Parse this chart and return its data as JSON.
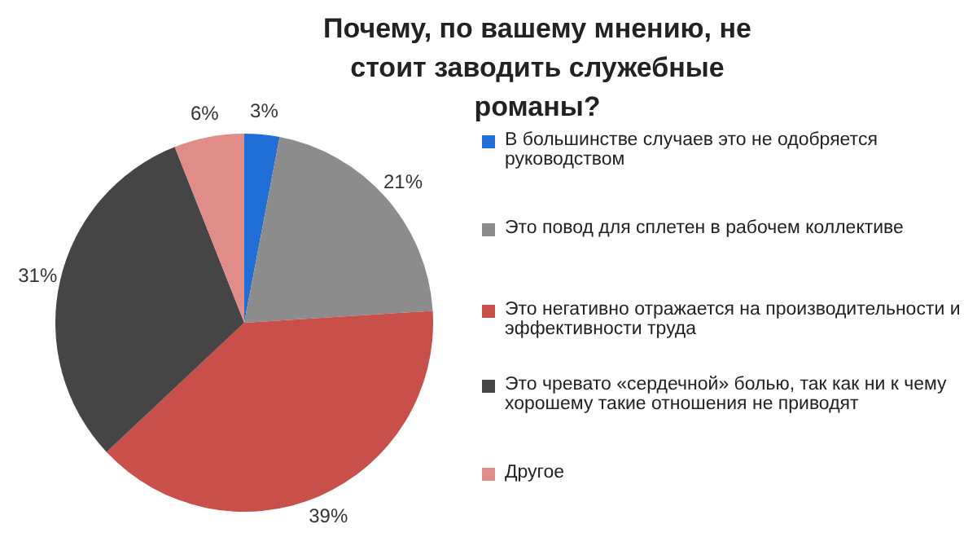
{
  "chart_data": {
    "type": "pie",
    "title": "Почему, по вашему мнению, не стоит заводить служебные романы?",
    "categories": [
      "В большинстве случаев это не одобряется руководством",
      "Это повод для сплетен в рабочем коллективе",
      "Это негативно отражается на производительности и эффективности труда",
      "Это чревато «сердечной» болью, так как ни к чему хорошему такие отношения не приводят",
      "Другое"
    ],
    "values": [
      3,
      21,
      39,
      31,
      6
    ],
    "colors": [
      "#1f6fd6",
      "#8c8c8c",
      "#c9504a",
      "#454545",
      "#e08c88"
    ],
    "value_labels": [
      "3%",
      "21%",
      "39%",
      "31%",
      "6%"
    ],
    "legend": "right"
  }
}
